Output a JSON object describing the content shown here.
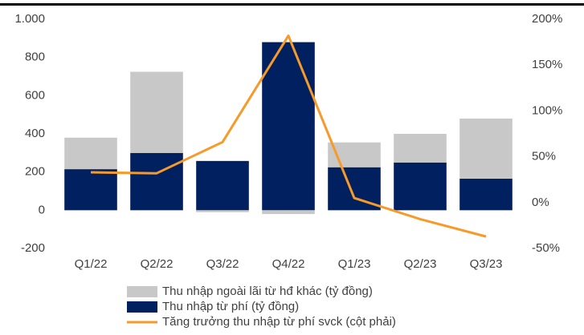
{
  "chart_data": {
    "type": "bar",
    "categories": [
      "Q1/22",
      "Q2/22",
      "Q3/22",
      "Q4/22",
      "Q1/23",
      "Q2/23",
      "Q3/23"
    ],
    "series": [
      {
        "name": "Thu nhập từ phí (tỷ đồng)",
        "color": "#002060",
        "values": [
          215,
          300,
          258,
          880,
          225,
          250,
          165
        ]
      },
      {
        "name": "Thu nhập ngoài lãi từ hđ khác (tỷ đồng)",
        "color": "#c8c8c8",
        "values": [
          165,
          425,
          -10,
          -20,
          130,
          150,
          315
        ]
      },
      {
        "name": "Tăng trưởng thu nhập từ phí svck (cột phải)",
        "color": "#f79a2a",
        "type": "line",
        "axis": "y2",
        "values": [
          33,
          32,
          66,
          182,
          5,
          -18,
          -37
        ]
      }
    ],
    "ylim": [
      -200,
      1000
    ],
    "yticks": [
      {
        "value": 1000,
        "label": "1.000"
      },
      800,
      600,
      400,
      200,
      0,
      -200
    ],
    "y2lim": [
      -50,
      200
    ],
    "y2ticks": [
      {
        "value": 200,
        "label": "200%"
      },
      {
        "value": 150,
        "label": "150%"
      },
      {
        "value": 100,
        "label": "100%"
      },
      {
        "value": 50,
        "label": "50%"
      },
      {
        "value": 0,
        "label": "0%"
      },
      {
        "value": -50,
        "label": "-50%"
      }
    ],
    "stacked": true,
    "grid": false
  }
}
